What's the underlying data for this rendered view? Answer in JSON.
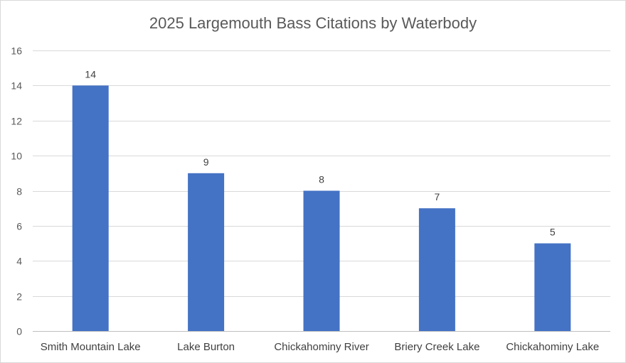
{
  "chart_data": {
    "type": "bar",
    "title": "2025 Largemouth Bass Citations by Waterbody",
    "xlabel": "",
    "ylabel": "",
    "categories": [
      "Smith Mountain Lake",
      "Lake Burton",
      "Chickahominy River",
      "Briery Creek Lake",
      "Chickahominy Lake"
    ],
    "values": [
      14,
      9,
      8,
      7,
      5
    ],
    "ylim": [
      0,
      16
    ],
    "yticks": [
      0,
      2,
      4,
      6,
      8,
      10,
      12,
      14,
      16
    ],
    "grid": true,
    "legend": "none",
    "bar_color": "#4472C4"
  }
}
